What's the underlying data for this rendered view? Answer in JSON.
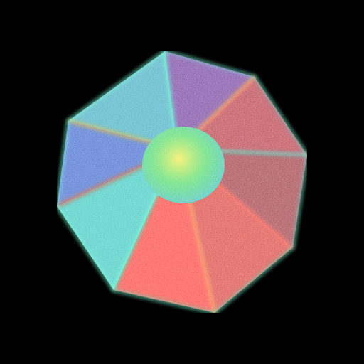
{
  "scene": {
    "subject": "octagonal-crystal",
    "background_color": "#000000",
    "facet_colors": {
      "upper_left": "#2fb7c9",
      "left": "#2a6fd6",
      "lower_left": "#1fd0c8",
      "bottom": "#ff2a10",
      "lower_right": "#e0301c",
      "right": "#a8142e",
      "upper_right": "#c21a3a",
      "top": "#7b2aa8"
    },
    "core_colors": [
      "#f7f03a",
      "#4fe070",
      "#18c9c2"
    ],
    "edge_glow_colors": [
      "#40ffd0",
      "#ffb020",
      "#ff4a20"
    ]
  }
}
